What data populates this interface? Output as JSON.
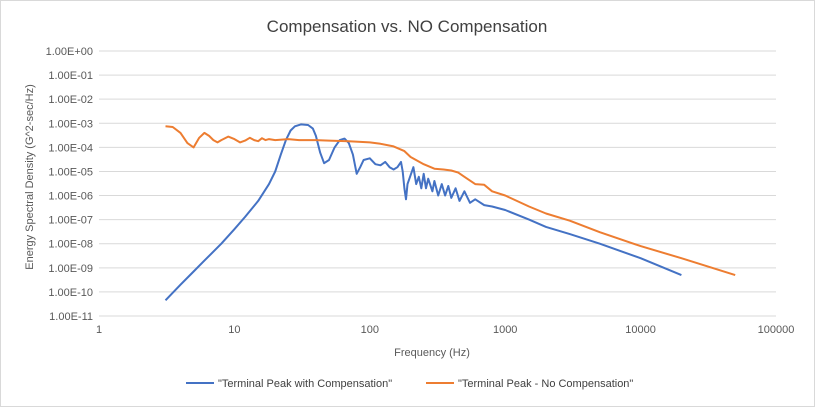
{
  "chart_data": {
    "type": "line",
    "title": "Compensation vs. NO Compensation",
    "xlabel": "Frequency (Hz)",
    "ylabel": "Energy Spectral Density (G^2-sec/Hz)",
    "x_scale": "log",
    "y_scale": "log",
    "xlim": [
      1,
      100000
    ],
    "ylim": [
      1e-11,
      1
    ],
    "x_ticks": [
      "1",
      "10",
      "100",
      "1000",
      "10000",
      "100000"
    ],
    "y_ticks": [
      "1.00E-11",
      "1.00E-10",
      "1.00E-09",
      "1.00E-08",
      "1.00E-07",
      "1.00E-06",
      "1.00E-05",
      "1.00E-04",
      "1.00E-03",
      "1.00E-02",
      "1.00E-01",
      "1.00E+00"
    ],
    "grid": "horizontal",
    "legend_position": "bottom",
    "series": [
      {
        "name": "\"Terminal Peak with Compensation\"",
        "color": "#4472c4",
        "points": [
          [
            3.1,
            4.5e-11
          ],
          [
            4,
            2e-10
          ],
          [
            5,
            7e-10
          ],
          [
            6,
            2e-09
          ],
          [
            8,
            1e-08
          ],
          [
            10,
            4e-08
          ],
          [
            12,
            1.3e-07
          ],
          [
            15,
            6e-07
          ],
          [
            18,
            3e-06
          ],
          [
            20,
            1e-05
          ],
          [
            22,
            5e-05
          ],
          [
            24,
            0.0002
          ],
          [
            26,
            0.0005
          ],
          [
            28,
            0.00075
          ],
          [
            31,
            0.0009
          ],
          [
            35,
            0.00085
          ],
          [
            38,
            0.0006
          ],
          [
            40,
            0.0003
          ],
          [
            43,
            6e-05
          ],
          [
            46,
            2.2e-05
          ],
          [
            50,
            3e-05
          ],
          [
            55,
            0.0001
          ],
          [
            60,
            0.0002
          ],
          [
            65,
            0.00023
          ],
          [
            70,
            0.00015
          ],
          [
            75,
            5e-05
          ],
          [
            80,
            8e-06
          ],
          [
            85,
            1.5e-05
          ],
          [
            90,
            3e-05
          ],
          [
            100,
            3.5e-05
          ],
          [
            110,
            2e-05
          ],
          [
            120,
            1.8e-05
          ],
          [
            130,
            2.5e-05
          ],
          [
            140,
            1.5e-05
          ],
          [
            150,
            1.2e-05
          ],
          [
            160,
            1.5e-05
          ],
          [
            170,
            2.5e-05
          ],
          [
            175,
            1e-05
          ],
          [
            180,
            2e-06
          ],
          [
            185,
            7e-07
          ],
          [
            190,
            3e-06
          ],
          [
            200,
            7e-06
          ],
          [
            210,
            1.5e-05
          ],
          [
            220,
            3e-06
          ],
          [
            230,
            6e-06
          ],
          [
            240,
            2e-06
          ],
          [
            250,
            8e-06
          ],
          [
            260,
            2e-06
          ],
          [
            270,
            5e-06
          ],
          [
            290,
            1.5e-06
          ],
          [
            300,
            4e-06
          ],
          [
            320,
            1e-06
          ],
          [
            340,
            3e-06
          ],
          [
            360,
            1e-06
          ],
          [
            380,
            2.5e-06
          ],
          [
            400,
            8e-07
          ],
          [
            430,
            2e-06
          ],
          [
            460,
            6e-07
          ],
          [
            500,
            1.5e-06
          ],
          [
            550,
            5e-07
          ],
          [
            600,
            7e-07
          ],
          [
            700,
            4e-07
          ],
          [
            800,
            3.5e-07
          ],
          [
            1000,
            2.5e-07
          ],
          [
            1500,
            1e-07
          ],
          [
            2000,
            5e-08
          ],
          [
            3000,
            2.5e-08
          ],
          [
            5000,
            1e-08
          ],
          [
            10000,
            2.5e-09
          ],
          [
            20000,
            5e-10
          ]
        ]
      },
      {
        "name": "\"Terminal Peak - No Compensation\"",
        "color": "#ed7d31",
        "points": [
          [
            3.1,
            0.00075
          ],
          [
            3.5,
            0.0007
          ],
          [
            4,
            0.0004
          ],
          [
            4.5,
            0.00015
          ],
          [
            5,
            0.0001
          ],
          [
            5.5,
            0.00025
          ],
          [
            6,
            0.0004
          ],
          [
            6.5,
            0.0003
          ],
          [
            7,
            0.0002
          ],
          [
            7.5,
            0.00016
          ],
          [
            8,
            0.0002
          ],
          [
            9,
            0.00028
          ],
          [
            10,
            0.00022
          ],
          [
            11,
            0.00016
          ],
          [
            12,
            0.00019
          ],
          [
            13,
            0.00025
          ],
          [
            14,
            0.0002
          ],
          [
            15,
            0.00018
          ],
          [
            16,
            0.00024
          ],
          [
            17,
            0.0002
          ],
          [
            18,
            0.00022
          ],
          [
            20,
            0.0002
          ],
          [
            25,
            0.00022
          ],
          [
            30,
            0.0002
          ],
          [
            40,
            0.0002
          ],
          [
            50,
            0.00019
          ],
          [
            70,
            0.00018
          ],
          [
            100,
            0.00016
          ],
          [
            120,
            0.00014
          ],
          [
            150,
            0.00011
          ],
          [
            180,
            7e-05
          ],
          [
            200,
            4e-05
          ],
          [
            250,
            2e-05
          ],
          [
            300,
            1.3e-05
          ],
          [
            350,
            1.2e-05
          ],
          [
            400,
            1.1e-05
          ],
          [
            450,
            9e-06
          ],
          [
            500,
            6e-06
          ],
          [
            600,
            3e-06
          ],
          [
            700,
            2.8e-06
          ],
          [
            800,
            1.5e-06
          ],
          [
            1000,
            1e-06
          ],
          [
            1500,
            3.5e-07
          ],
          [
            2000,
            1.8e-07
          ],
          [
            3000,
            9e-08
          ],
          [
            5000,
            3e-08
          ],
          [
            10000,
            8e-09
          ],
          [
            20000,
            2.5e-09
          ],
          [
            50000,
            5e-10
          ]
        ]
      }
    ]
  }
}
